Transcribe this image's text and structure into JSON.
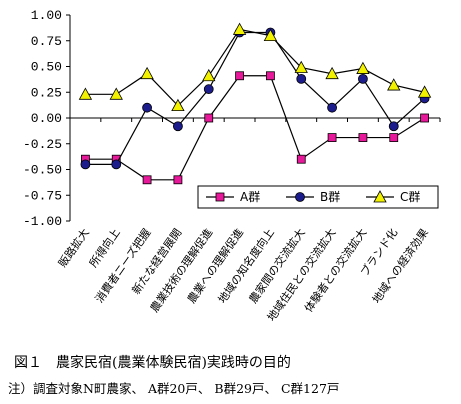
{
  "chart_data": {
    "type": "line",
    "categories": [
      "販路拡大",
      "所得向上",
      "消費者ニーズ把握",
      "新たな経営展開",
      "農業技術の理解促進",
      "農業への理解促進",
      "地域の知名度向上",
      "農家間の交流拡大",
      "地域住民との交流拡大",
      "体験者との交流拡大",
      "ブランド化",
      "地域への経済効果"
    ],
    "series": [
      {
        "name": "A群",
        "color": "#e8189a",
        "marker": "square",
        "values": [
          -0.4,
          -0.4,
          -0.6,
          -0.6,
          0.0,
          0.41,
          0.41,
          -0.4,
          -0.19,
          -0.19,
          -0.19,
          0.0
        ]
      },
      {
        "name": "B群",
        "color": "#1c1c8c",
        "marker": "circle",
        "values": [
          -0.45,
          -0.45,
          0.1,
          -0.08,
          0.28,
          0.83,
          0.83,
          0.38,
          0.1,
          0.38,
          -0.08,
          0.19
        ]
      },
      {
        "name": "C群",
        "color": "#f2f200",
        "marker": "triangle",
        "values": [
          0.23,
          0.23,
          0.43,
          0.12,
          0.41,
          0.86,
          0.8,
          0.49,
          0.43,
          0.48,
          0.32,
          0.25
        ]
      }
    ],
    "yticks": [
      "1.00",
      "0.75",
      "0.50",
      "0.25",
      "0.00",
      "-0.25",
      "-0.50",
      "-0.75",
      "-1.00"
    ],
    "ylim": [
      -1.0,
      1.0
    ],
    "grid": false,
    "legend_position": "lower-right"
  },
  "caption": "図１　農家民宿(農業体験民宿)実践時の目的",
  "note": {
    "prefix": "注）調査対象N町農家、",
    "groupA": "A群20戸、",
    "groupB": "B群29戸、",
    "groupC": "C群127戸"
  }
}
